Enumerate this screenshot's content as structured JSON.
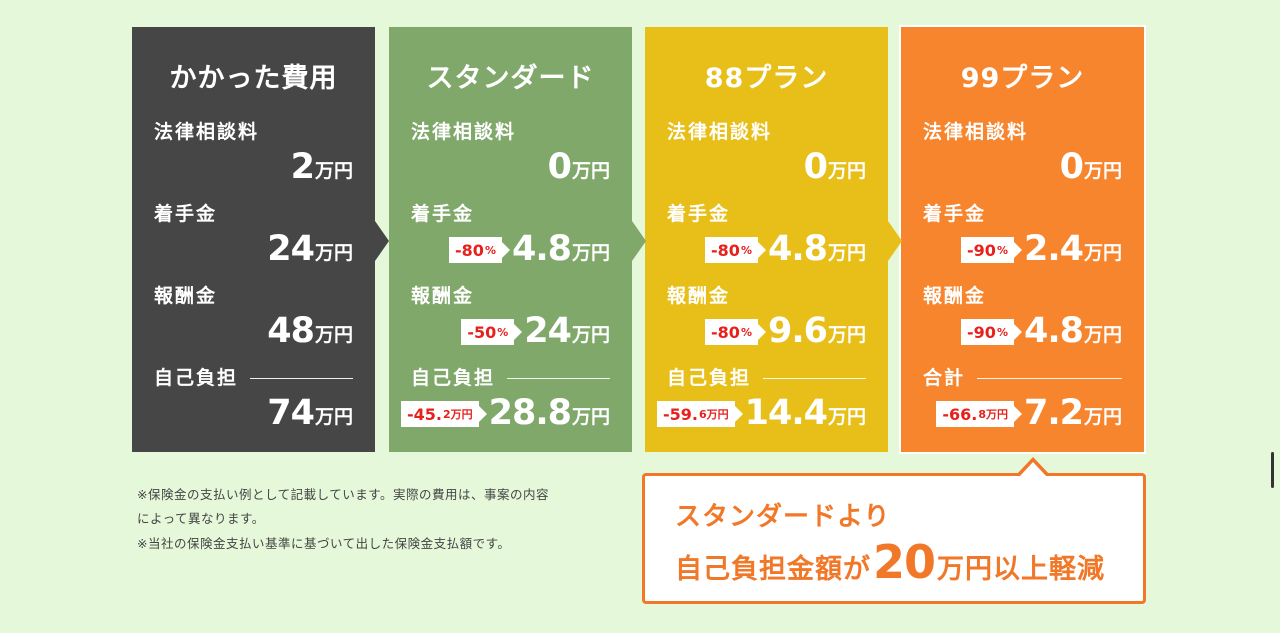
{
  "colors": {
    "background": "#e6f8da",
    "cost": "#464646",
    "standard": "#7fa86a",
    "plan88": "#e8bf18",
    "plan99": "#f6852d",
    "badge_text": "#e8201c",
    "callout": "#f07828"
  },
  "cards": [
    {
      "title": "かかった費用",
      "rows": [
        {
          "label": "法律相談料",
          "value": "2",
          "unit": "万円",
          "badge": ""
        },
        {
          "label": "着手金",
          "value": "24",
          "unit": "万円",
          "badge": ""
        },
        {
          "label": "報酬金",
          "value": "48",
          "unit": "万円",
          "badge": ""
        }
      ],
      "total": {
        "label": "自己負担",
        "value": "74",
        "unit": "万円",
        "badge_main": "",
        "badge_small": ""
      }
    },
    {
      "title": "スタンダード",
      "rows": [
        {
          "label": "法律相談料",
          "value": "0",
          "unit": "万円",
          "badge": ""
        },
        {
          "label": "着手金",
          "value": "4.8",
          "unit": "万円",
          "badge": "-80",
          "badge_pct": "%"
        },
        {
          "label": "報酬金",
          "value": "24",
          "unit": "万円",
          "badge": "-50",
          "badge_pct": "%"
        }
      ],
      "total": {
        "label": "自己負担",
        "value": "28.8",
        "unit": "万円",
        "badge_main": "-45.",
        "badge_small": "2万円"
      }
    },
    {
      "title": "88プラン",
      "rows": [
        {
          "label": "法律相談料",
          "value": "0",
          "unit": "万円",
          "badge": ""
        },
        {
          "label": "着手金",
          "value": "4.8",
          "unit": "万円",
          "badge": "-80",
          "badge_pct": "%"
        },
        {
          "label": "報酬金",
          "value": "9.6",
          "unit": "万円",
          "badge": "-80",
          "badge_pct": "%"
        }
      ],
      "total": {
        "label": "自己負担",
        "value": "14.4",
        "unit": "万円",
        "badge_main": "-59.",
        "badge_small": "6万円"
      }
    },
    {
      "title": "99プラン",
      "rows": [
        {
          "label": "法律相談料",
          "value": "0",
          "unit": "万円",
          "badge": ""
        },
        {
          "label": "着手金",
          "value": "2.4",
          "unit": "万円",
          "badge": "-90",
          "badge_pct": "%"
        },
        {
          "label": "報酬金",
          "value": "4.8",
          "unit": "万円",
          "badge": "-90",
          "badge_pct": "%"
        }
      ],
      "total": {
        "label": "合計",
        "value": "7.2",
        "unit": "万円",
        "badge_main": "-66.",
        "badge_small": "8万円"
      }
    }
  ],
  "notes": [
    "※保険金の支払い例として記載しています。実際の費用は、事案の内容",
    "によって異なります。",
    "※当社の保険金支払い基準に基づいて出した保険金支払額です。"
  ],
  "callout": {
    "line1": "スタンダードより",
    "line2_pre": "自己負担金額が",
    "line2_big": "20",
    "line2_post": "万円以上軽減"
  }
}
